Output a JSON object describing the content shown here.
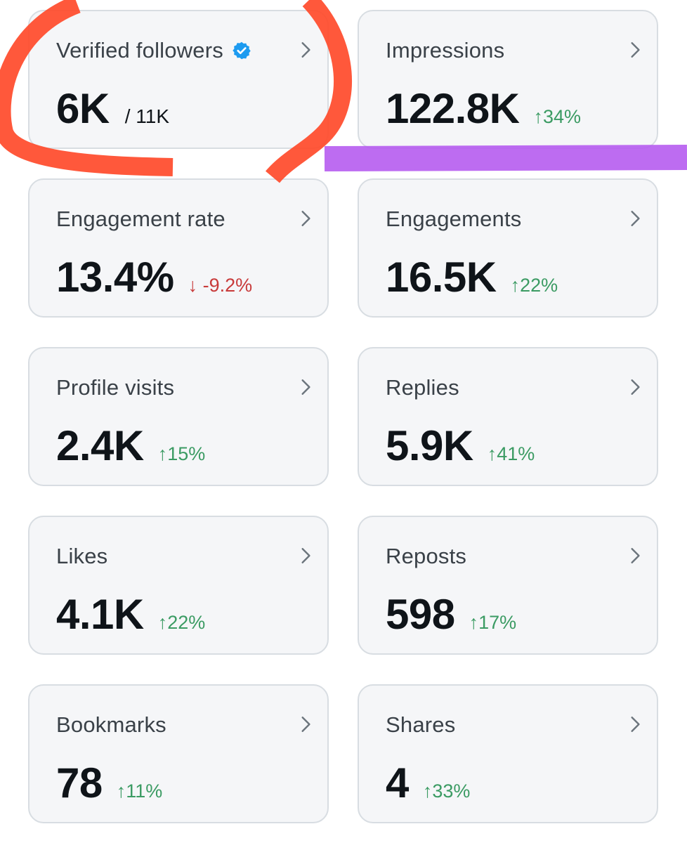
{
  "colors": {
    "card_bg": "#f5f6f8",
    "card_border": "#d8dde2",
    "value_text": "#0f1419",
    "label_text": "#3a4148",
    "positive": "#3b9b63",
    "negative": "#c83a3a",
    "verified_blue": "#1d9bf0",
    "annotation_red": "#ff4a2a",
    "annotation_purple": "#b65cf0"
  },
  "cards": [
    {
      "label": "Verified followers",
      "value": "6K",
      "sub": "/ 11K",
      "icon": "verified-badge-icon"
    },
    {
      "label": "Impressions",
      "value": "122.8K",
      "delta": "↑34%",
      "trend": "up"
    },
    {
      "label": "Engagement rate",
      "value": "13.4%",
      "delta": "↓ -9.2%",
      "trend": "down"
    },
    {
      "label": "Engagements",
      "value": "16.5K",
      "delta": "↑22%",
      "trend": "up"
    },
    {
      "label": "Profile visits",
      "value": "2.4K",
      "delta": "↑15%",
      "trend": "up"
    },
    {
      "label": "Replies",
      "value": "5.9K",
      "delta": "↑41%",
      "trend": "up"
    },
    {
      "label": "Likes",
      "value": "4.1K",
      "delta": "↑22%",
      "trend": "up"
    },
    {
      "label": "Reposts",
      "value": "598",
      "delta": "↑17%",
      "trend": "up"
    },
    {
      "label": "Bookmarks",
      "value": "78",
      "delta": "↑11%",
      "trend": "up"
    },
    {
      "label": "Shares",
      "value": "4",
      "delta": "↑33%",
      "trend": "up"
    }
  ]
}
